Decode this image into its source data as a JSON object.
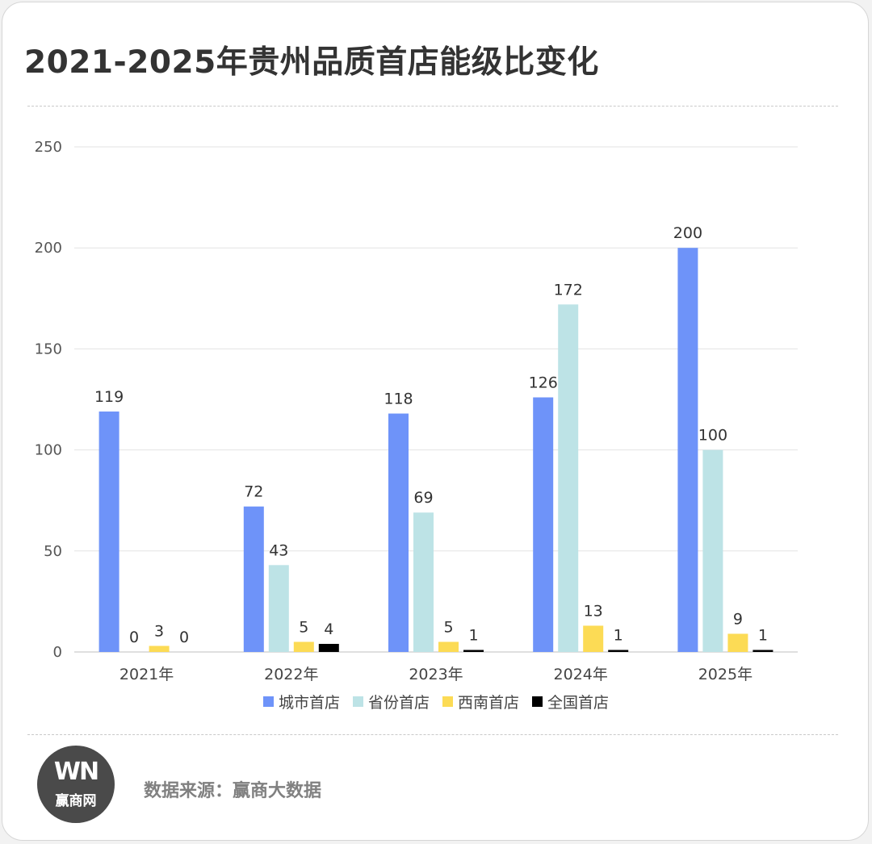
{
  "header": {
    "title": "2021-2025年贵州品质首店能级比变化"
  },
  "chart_data": {
    "type": "bar",
    "categories": [
      "2021年",
      "2022年",
      "2023年",
      "2024年",
      "2025年"
    ],
    "series": [
      {
        "name": "城市首店",
        "color": "#6e93f9",
        "values": [
          119,
          72,
          118,
          126,
          200
        ]
      },
      {
        "name": "省份首店",
        "color": "#bde3e6",
        "values": [
          0,
          43,
          69,
          172,
          100
        ]
      },
      {
        "name": "西南首店",
        "color": "#fcdb55",
        "values": [
          3,
          5,
          5,
          13,
          9
        ]
      },
      {
        "name": "全国首店",
        "color": "#000000",
        "values": [
          0,
          4,
          1,
          1,
          1
        ]
      }
    ],
    "ylim": [
      0,
      250
    ],
    "yticks": [
      0,
      50,
      100,
      150,
      200,
      250
    ],
    "grid": true,
    "legend_position": "bottom",
    "show_data_labels": true
  },
  "footer": {
    "logo_mark": "WN",
    "logo_text": "赢商网",
    "source": "数据来源：赢商大数据"
  }
}
